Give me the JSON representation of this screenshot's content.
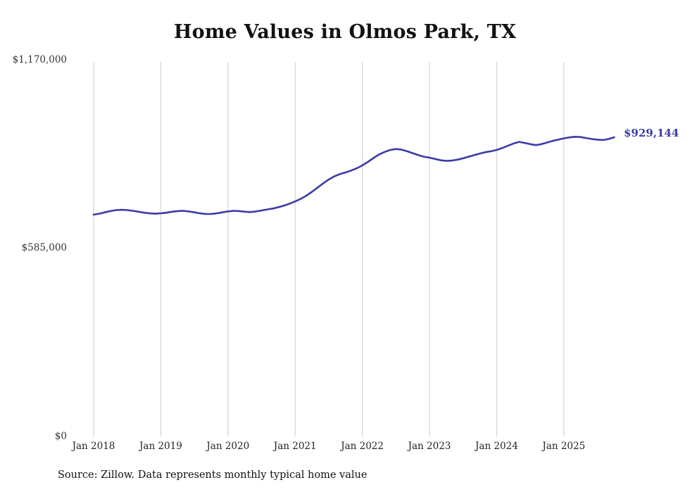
{
  "title": "Home Values in Olmos Park, TX",
  "source_note": "Source: Zillow. Data represents monthly typical home value",
  "colors": {
    "line": "#3b3ba6",
    "gridline": "#cccccc",
    "title": "#111111",
    "tick_label": "#333333"
  },
  "chart_data": {
    "type": "line",
    "title": "Home Values in Olmos Park, TX",
    "xlabel": "",
    "ylabel": "",
    "ylim": [
      0,
      1170000
    ],
    "y_tick_labels": [
      "$0",
      "$585,000",
      "$1,170,000"
    ],
    "x_tick_labels": [
      "Jan 2018",
      "Jan 2019",
      "Jan 2020",
      "Jan 2021",
      "Jan 2022",
      "Jan 2023",
      "Jan 2024",
      "Jan 2025"
    ],
    "x_unit": "month",
    "x_range": [
      "2018-01",
      "2025-10"
    ],
    "grid": "vertical",
    "legend": "none",
    "final_value": 929144,
    "final_value_label": "$929,144",
    "series": [
      {
        "name": "Typical home value (USD)",
        "values": [
          689000,
          692000,
          696000,
          700000,
          703000,
          704000,
          703000,
          701000,
          698000,
          695000,
          693000,
          692000,
          693000,
          695000,
          698000,
          700000,
          701000,
          699000,
          696000,
          693000,
          691000,
          691000,
          693000,
          696000,
          699000,
          701000,
          700000,
          698000,
          697000,
          699000,
          702000,
          705000,
          708000,
          712000,
          717000,
          723000,
          730000,
          738000,
          748000,
          760000,
          773000,
          786000,
          798000,
          808000,
          815000,
          820000,
          826000,
          833000,
          842000,
          853000,
          865000,
          876000,
          884000,
          890000,
          893000,
          891000,
          886000,
          880000,
          874000,
          869000,
          866000,
          862000,
          858000,
          856000,
          857000,
          860000,
          864000,
          869000,
          874000,
          879000,
          883000,
          886000,
          890000,
          896000,
          903000,
          910000,
          915000,
          912000,
          908000,
          905000,
          908000,
          913000,
          918000,
          922000,
          926000,
          929000,
          931000,
          930000,
          927000,
          924000,
          922000,
          921000,
          924000,
          929144
        ]
      }
    ]
  }
}
